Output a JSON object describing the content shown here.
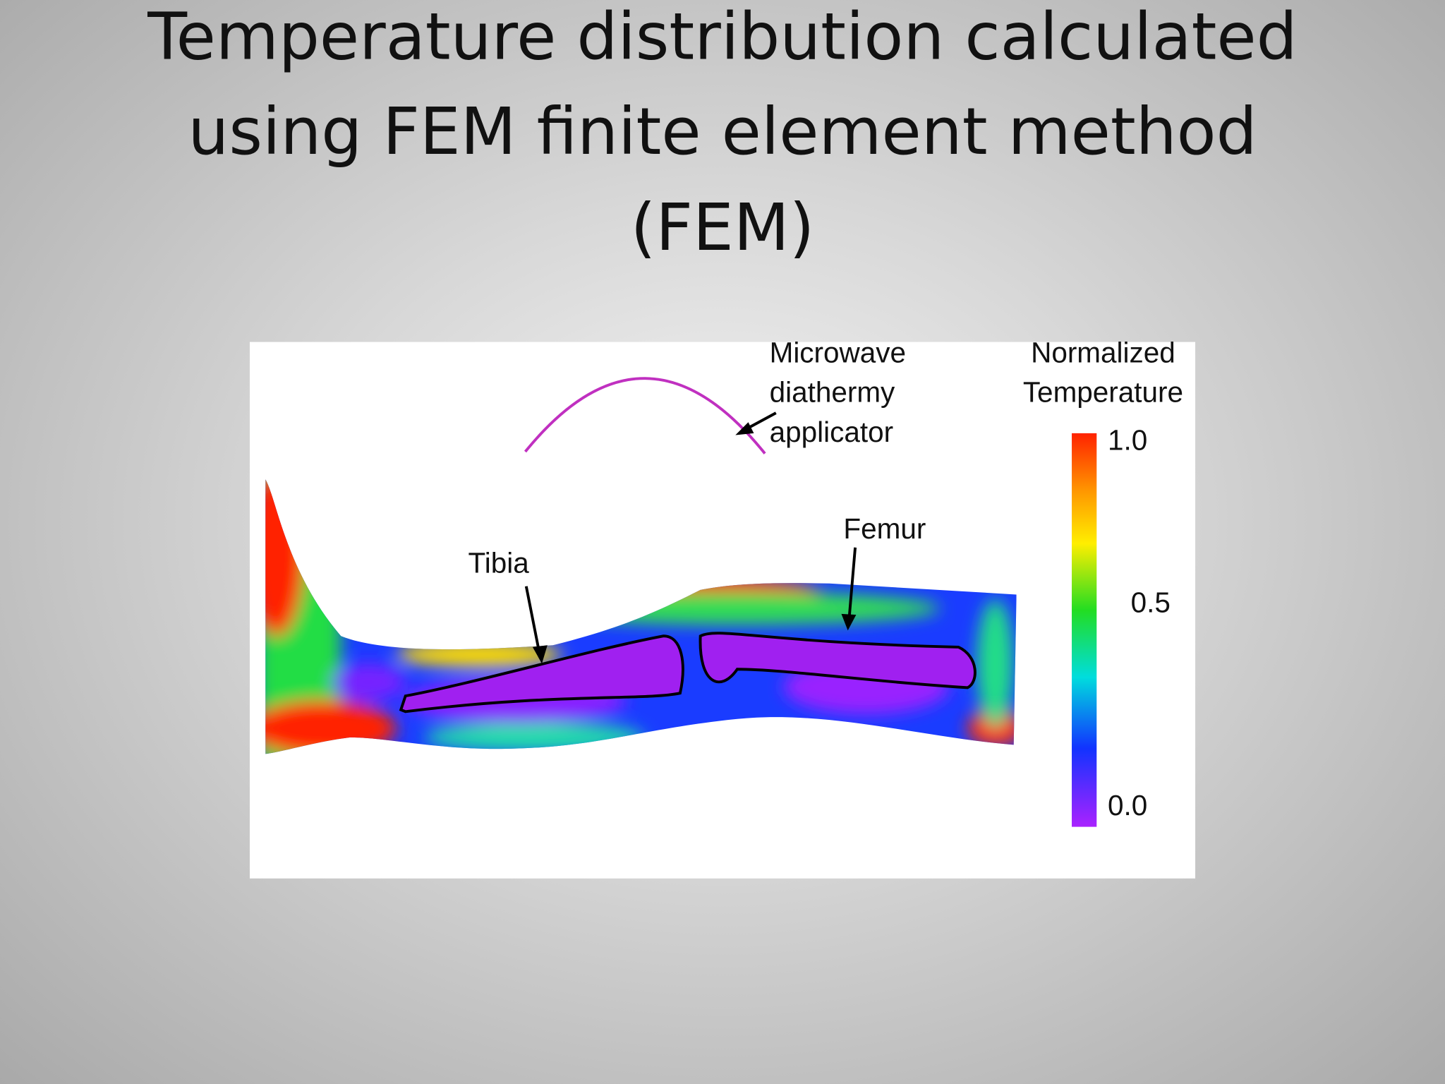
{
  "slide": {
    "title": [
      "Temperature distribution calculated",
      "using FEM finite element method",
      "(FEM)"
    ],
    "figure": {
      "applicator_label": [
        "Microwave",
        "diathermy",
        "applicator"
      ],
      "colorbar_title": [
        "Normalized",
        "Temperature"
      ],
      "colorbar_ticks": [
        "1.0",
        "0.5",
        "0.0"
      ],
      "tibia_label": "Tibia",
      "femur_label": "Femur"
    }
  }
}
